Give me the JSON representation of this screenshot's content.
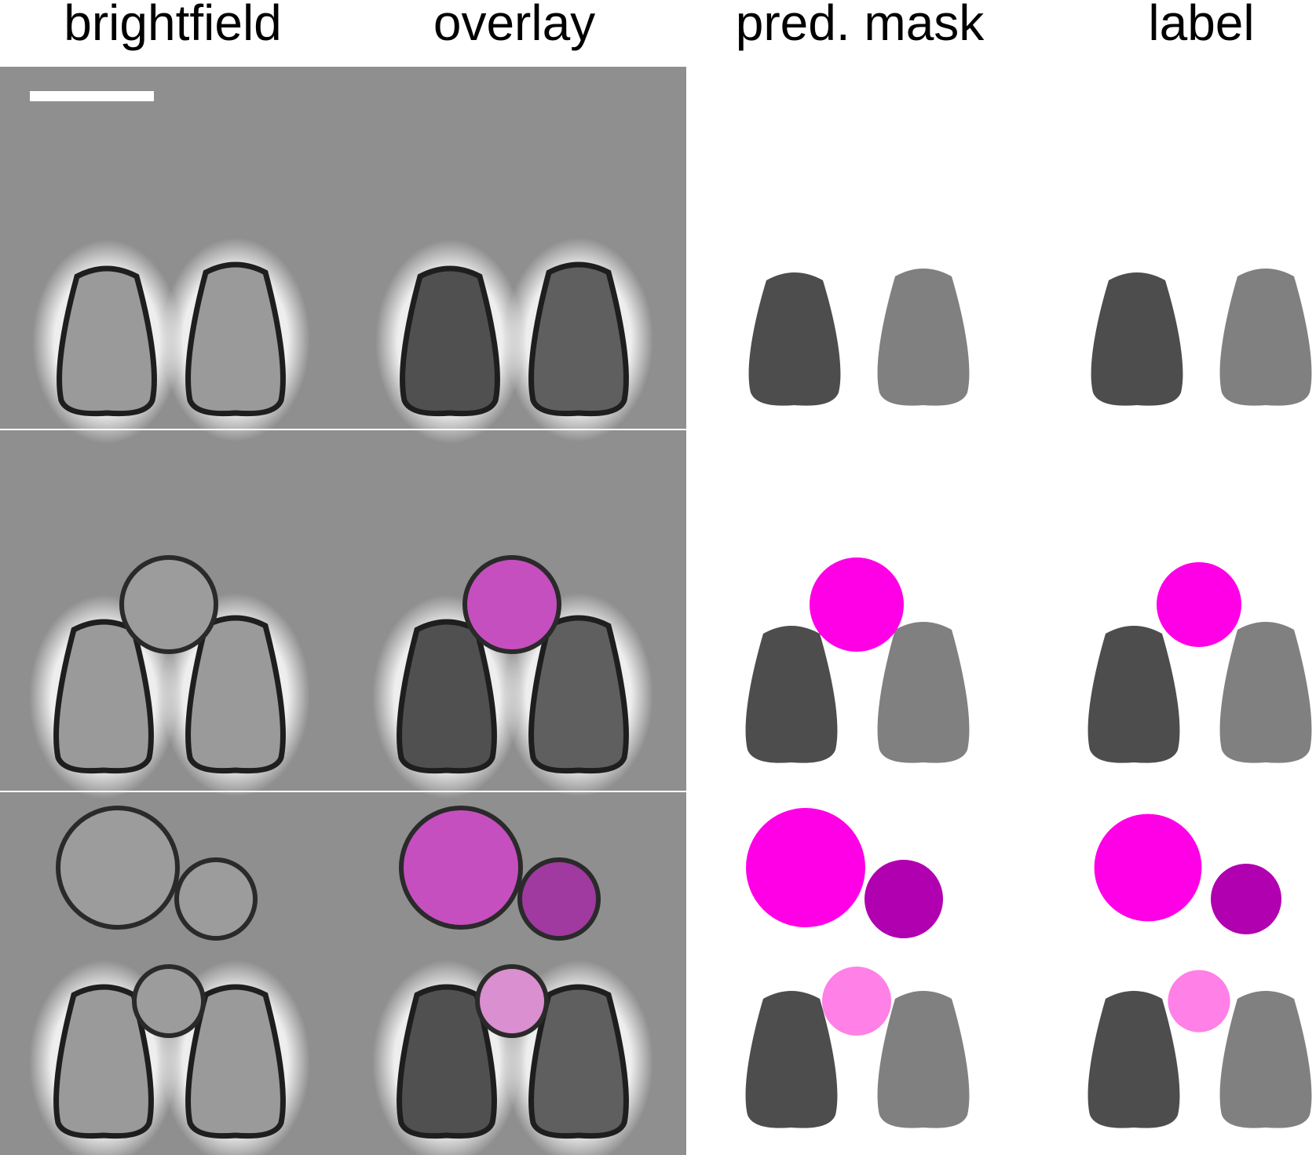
{
  "columns": {
    "brightfield": "brightfield",
    "overlay": "overlay",
    "pred_mask": "pred. mask",
    "label": "label"
  },
  "colors": {
    "background_gray": "#8f8f8f",
    "cell_dark_gray": "#4d4d4d",
    "cell_mid_gray": "#808080",
    "magenta": "#ff00e6",
    "dark_magenta": "#b000b0",
    "light_pink": "#ff80e6",
    "panel_divider": "#ffffff"
  },
  "rows": 3,
  "scale_bar": "scale-bar"
}
